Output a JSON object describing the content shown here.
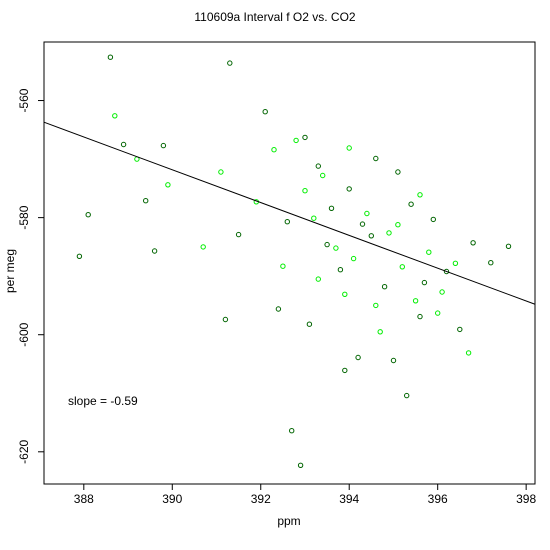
{
  "chart_data": {
    "type": "scatter",
    "title": "110609a   Interval f O2 vs. CO2",
    "xlabel": "ppm",
    "ylabel": "per meg",
    "xlim": [
      387.1,
      398.2
    ],
    "ylim": [
      -625.5,
      -550.0
    ],
    "x_ticks": [
      388,
      390,
      392,
      394,
      396,
      398
    ],
    "y_ticks": [
      -560,
      -580,
      -600,
      -620
    ],
    "annotation": "slope =  -0.59",
    "fit_line": {
      "x": [
        387.1,
        398.2
      ],
      "y": [
        -563.7,
        -594.8
      ]
    },
    "grid": false,
    "legend": "none",
    "colors": {
      "series_dark": "#006400",
      "series_bright": "#00ee00",
      "fit_line": "#000000"
    },
    "series": [
      {
        "values": [
          [
            388.6,
            -552.6
          ],
          [
            388.9,
            -567.5
          ],
          [
            391.3,
            -553.6
          ],
          [
            388.1,
            -579.5
          ],
          [
            389.4,
            -577.1
          ],
          [
            389.8,
            -567.7
          ],
          [
            387.9,
            -586.6
          ],
          [
            389.6,
            -585.7
          ],
          [
            391.2,
            -597.4
          ],
          [
            391.5,
            -582.9
          ],
          [
            392.1,
            -561.9
          ],
          [
            392.7,
            -616.4
          ],
          [
            392.9,
            -622.3
          ],
          [
            393.0,
            -566.3
          ],
          [
            393.3,
            -571.2
          ],
          [
            393.6,
            -578.4
          ],
          [
            393.8,
            -588.9
          ],
          [
            394.0,
            -575.1
          ],
          [
            394.2,
            -603.9
          ],
          [
            394.5,
            -583.1
          ],
          [
            394.8,
            -591.8
          ],
          [
            395.1,
            -572.2
          ],
          [
            395.3,
            -610.4
          ],
          [
            395.6,
            -596.9
          ],
          [
            395.9,
            -580.3
          ],
          [
            396.2,
            -589.2
          ],
          [
            396.5,
            -599.1
          ],
          [
            396.8,
            -584.3
          ],
          [
            397.2,
            -587.7
          ],
          [
            397.6,
            -584.9
          ],
          [
            392.4,
            -595.6
          ],
          [
            393.1,
            -598.2
          ],
          [
            393.9,
            -606.1
          ],
          [
            394.6,
            -569.9
          ],
          [
            395.0,
            -604.4
          ],
          [
            395.4,
            -577.7
          ],
          [
            395.7,
            -591.1
          ],
          [
            392.6,
            -580.7
          ],
          [
            393.5,
            -584.6
          ],
          [
            394.3,
            -581.1
          ]
        ]
      },
      {
        "values": [
          [
            388.7,
            -562.6
          ],
          [
            389.2,
            -570.0
          ],
          [
            389.9,
            -574.4
          ],
          [
            390.7,
            -585.0
          ],
          [
            391.1,
            -572.2
          ],
          [
            391.9,
            -577.3
          ],
          [
            392.3,
            -568.4
          ],
          [
            392.8,
            -566.8
          ],
          [
            393.0,
            -575.4
          ],
          [
            393.2,
            -580.1
          ],
          [
            393.4,
            -572.8
          ],
          [
            393.7,
            -585.2
          ],
          [
            393.9,
            -593.1
          ],
          [
            394.1,
            -587.0
          ],
          [
            394.4,
            -579.3
          ],
          [
            394.7,
            -599.5
          ],
          [
            394.9,
            -582.6
          ],
          [
            395.2,
            -588.4
          ],
          [
            395.5,
            -594.2
          ],
          [
            395.8,
            -585.9
          ],
          [
            396.1,
            -592.7
          ],
          [
            396.4,
            -587.8
          ],
          [
            396.7,
            -603.1
          ],
          [
            392.5,
            -588.3
          ],
          [
            393.3,
            -590.5
          ],
          [
            394.0,
            -568.1
          ],
          [
            394.6,
            -595.0
          ],
          [
            395.1,
            -581.2
          ],
          [
            395.6,
            -576.1
          ],
          [
            396.0,
            -596.3
          ]
        ]
      }
    ]
  }
}
